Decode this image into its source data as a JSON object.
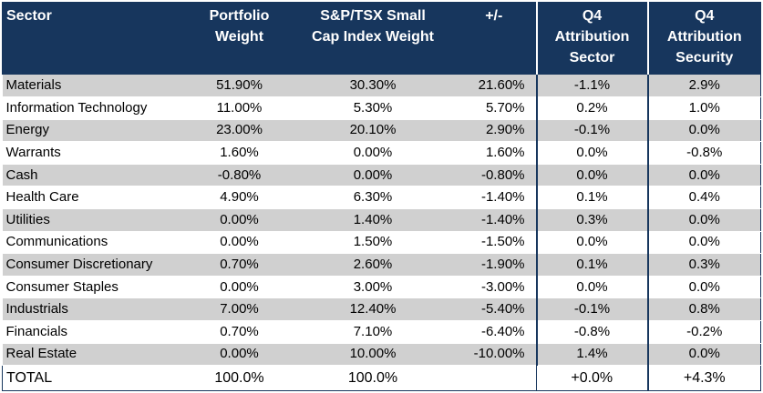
{
  "headers": {
    "sector": "Sector",
    "portfolio_line1": "Portfolio",
    "portfolio_line2": "Weight",
    "index_line1": "S&P/TSX Small",
    "index_line2": "Cap Index Weight",
    "diff": "+/-",
    "attr_sector_line1": "Q4",
    "attr_sector_line2": "Attribution",
    "attr_sector_line3": "Sector",
    "attr_security_line1": "Q4",
    "attr_security_line2": "Attribution",
    "attr_security_line3": "Security"
  },
  "rows": [
    {
      "sector": "Materials",
      "portfolio": "51.90%",
      "index": "30.30%",
      "diff": "21.60%",
      "attr_sector": "-1.1%",
      "attr_security": "2.9%"
    },
    {
      "sector": "Information Technology",
      "portfolio": "11.00%",
      "index": "5.30%",
      "diff": "5.70%",
      "attr_sector": "0.2%",
      "attr_security": "1.0%"
    },
    {
      "sector": "Energy",
      "portfolio": "23.00%",
      "index": "20.10%",
      "diff": "2.90%",
      "attr_sector": "-0.1%",
      "attr_security": "0.0%"
    },
    {
      "sector": "Warrants",
      "portfolio": "1.60%",
      "index": "0.00%",
      "diff": "1.60%",
      "attr_sector": "0.0%",
      "attr_security": "-0.8%"
    },
    {
      "sector": "Cash",
      "portfolio": "-0.80%",
      "index": "0.00%",
      "diff": "-0.80%",
      "attr_sector": "0.0%",
      "attr_security": "0.0%"
    },
    {
      "sector": "Health Care",
      "portfolio": "4.90%",
      "index": "6.30%",
      "diff": "-1.40%",
      "attr_sector": "0.1%",
      "attr_security": "0.4%"
    },
    {
      "sector": "Utilities",
      "portfolio": "0.00%",
      "index": "1.40%",
      "diff": "-1.40%",
      "attr_sector": "0.3%",
      "attr_security": "0.0%"
    },
    {
      "sector": "Communications",
      "portfolio": "0.00%",
      "index": "1.50%",
      "diff": "-1.50%",
      "attr_sector": "0.0%",
      "attr_security": "0.0%"
    },
    {
      "sector": "Consumer Discretionary",
      "portfolio": "0.70%",
      "index": "2.60%",
      "diff": "-1.90%",
      "attr_sector": "0.1%",
      "attr_security": "0.3%"
    },
    {
      "sector": "Consumer Staples",
      "portfolio": "0.00%",
      "index": "3.00%",
      "diff": "-3.00%",
      "attr_sector": "0.0%",
      "attr_security": "0.0%"
    },
    {
      "sector": "Industrials",
      "portfolio": "7.00%",
      "index": "12.40%",
      "diff": "-5.40%",
      "attr_sector": "-0.1%",
      "attr_security": "0.8%"
    },
    {
      "sector": "Financials",
      "portfolio": "0.70%",
      "index": "7.10%",
      "diff": "-6.40%",
      "attr_sector": "-0.8%",
      "attr_security": "-0.2%"
    },
    {
      "sector": "Real Estate",
      "portfolio": "0.00%",
      "index": "10.00%",
      "diff": "-10.00%",
      "attr_sector": "1.4%",
      "attr_security": "0.0%"
    }
  ],
  "total": {
    "label": "TOTAL",
    "portfolio": "100.0%",
    "index": "100.0%",
    "diff": "",
    "attr_sector": "+0.0%",
    "attr_security": "+4.3%"
  },
  "colors": {
    "header_bg": "#17365d",
    "header_text": "#ffffff",
    "row_shade": "#d0d0d0"
  }
}
